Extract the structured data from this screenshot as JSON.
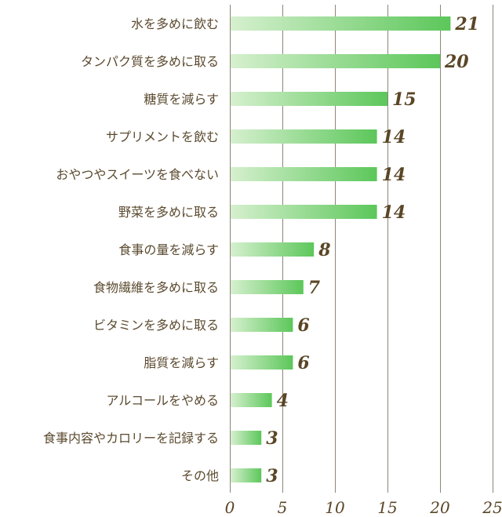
{
  "chart_data": {
    "type": "bar",
    "orientation": "horizontal",
    "title": "",
    "xlabel": "",
    "ylabel": "",
    "categories": [
      "水を多めに飲む",
      "タンパク質を多めに取る",
      "糖質を減らす",
      "サプリメントを飲む",
      "おやつやスイーツを食べない",
      "野菜を多めに取る",
      "食事の量を減らす",
      "食物繊維を多めに取る",
      "ビタミンを多めに取る",
      "脂質を減らす",
      "アルコールをやめる",
      "食事内容やカロリーを記録する",
      "その他"
    ],
    "values": [
      21,
      20,
      15,
      14,
      14,
      14,
      8,
      7,
      6,
      6,
      4,
      3,
      3
    ],
    "xlim": [
      0,
      25
    ],
    "xticks": [
      0,
      5,
      10,
      15,
      20,
      25
    ],
    "grid": true,
    "bar_gradient": [
      "#d6f0cf",
      "#5cc75a"
    ]
  }
}
